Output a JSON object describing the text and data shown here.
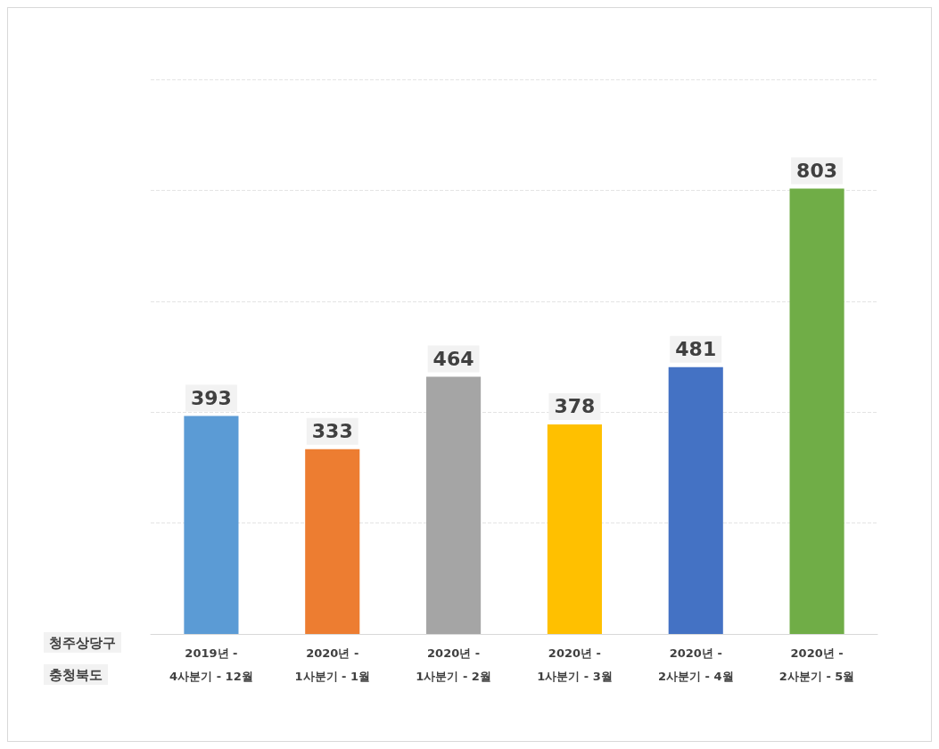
{
  "chart_data": {
    "type": "bar",
    "categories": [
      "2019년 -\n4사분기 - 12월",
      "2020년 -\n1사분기 - 1월",
      "2020년 -\n1사분기 - 2월",
      "2020년 -\n1사분기 - 3월",
      "2020년 -\n2사분기 - 4월",
      "2020년 -\n2사분기 - 5월"
    ],
    "values": [
      393,
      333,
      464,
      378,
      481,
      803
    ],
    "colors": [
      "#5b9bd5",
      "#ed7d31",
      "#a5a5a5",
      "#ffc000",
      "#4472c4",
      "#70ad47"
    ],
    "data_labels": true,
    "grid": "y",
    "tick_labels": "x",
    "annotations": [
      "청주상당구",
      "충청북도"
    ]
  }
}
